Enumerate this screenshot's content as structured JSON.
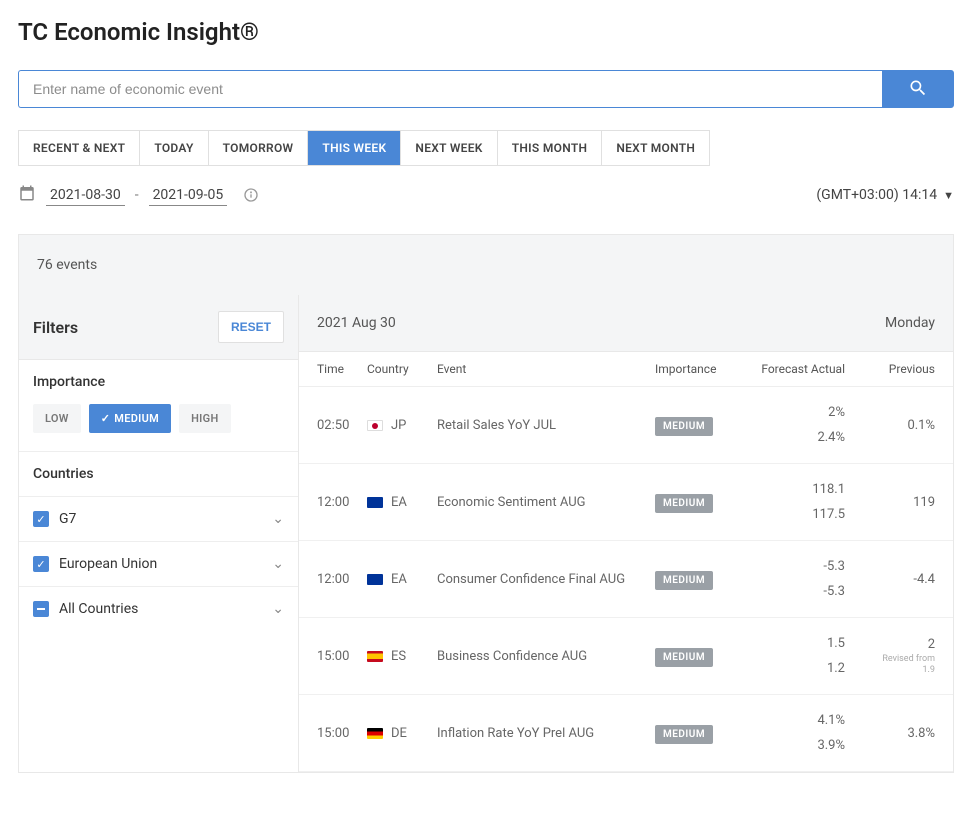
{
  "page_title": "TC Economic Insight®",
  "search": {
    "placeholder": "Enter name of economic event"
  },
  "tabs": [
    {
      "label": "RECENT & NEXT",
      "active": false
    },
    {
      "label": "TODAY",
      "active": false
    },
    {
      "label": "TOMORROW",
      "active": false
    },
    {
      "label": "THIS WEEK",
      "active": true
    },
    {
      "label": "NEXT WEEK",
      "active": false
    },
    {
      "label": "THIS MONTH",
      "active": false
    },
    {
      "label": "NEXT MONTH",
      "active": false
    }
  ],
  "date_range": {
    "start": "2021-08-30",
    "end": "2021-09-05"
  },
  "timezone": {
    "label": "(GMT+03:00) 14:14"
  },
  "events_count": "76 events",
  "filters": {
    "title": "Filters",
    "reset": "RESET",
    "importance": {
      "title": "Importance",
      "options": [
        {
          "label": "LOW",
          "active": false
        },
        {
          "label": "MEDIUM",
          "active": true
        },
        {
          "label": "HIGH",
          "active": false
        }
      ]
    },
    "countries": {
      "title": "Countries",
      "groups": [
        {
          "label": "G7",
          "state": "checked"
        },
        {
          "label": "European Union",
          "state": "checked"
        },
        {
          "label": "All Countries",
          "state": "partial"
        }
      ]
    }
  },
  "day_header": {
    "date": "2021 Aug 30",
    "weekday": "Monday"
  },
  "columns": {
    "time": "Time",
    "country": "Country",
    "event": "Event",
    "importance": "Importance",
    "forecast_actual": "Forecast Actual",
    "previous": "Previous"
  },
  "events": [
    {
      "time": "02:50",
      "country_code": "JP",
      "flag": "jp",
      "event": "Retail Sales YoY JUL",
      "importance": "MEDIUM",
      "forecast": "2%",
      "actual": "2.4%",
      "previous": "0.1%"
    },
    {
      "time": "12:00",
      "country_code": "EA",
      "flag": "ea",
      "event": "Economic Sentiment AUG",
      "importance": "MEDIUM",
      "forecast": "118.1",
      "actual": "117.5",
      "previous": "119"
    },
    {
      "time": "12:00",
      "country_code": "EA",
      "flag": "ea",
      "event": "Consumer Confidence Final AUG",
      "importance": "MEDIUM",
      "forecast": "-5.3",
      "actual": "-5.3",
      "previous": "-4.4"
    },
    {
      "time": "15:00",
      "country_code": "ES",
      "flag": "es",
      "event": "Business Confidence AUG",
      "importance": "MEDIUM",
      "forecast": "1.5",
      "actual": "1.2",
      "previous": "2",
      "previous_revised_from": "1.9"
    },
    {
      "time": "15:00",
      "country_code": "DE",
      "flag": "de",
      "event": "Inflation Rate YoY Prel AUG",
      "importance": "MEDIUM",
      "forecast": "4.1%",
      "actual": "3.9%",
      "previous": "3.8%"
    }
  ],
  "colors": {
    "accent": "#4a87d6",
    "badge_bg": "#9aa0a6",
    "panel_bg": "#f4f5f6",
    "border": "#e8e8e8",
    "text_primary": "#333333",
    "text_muted": "#666666"
  }
}
